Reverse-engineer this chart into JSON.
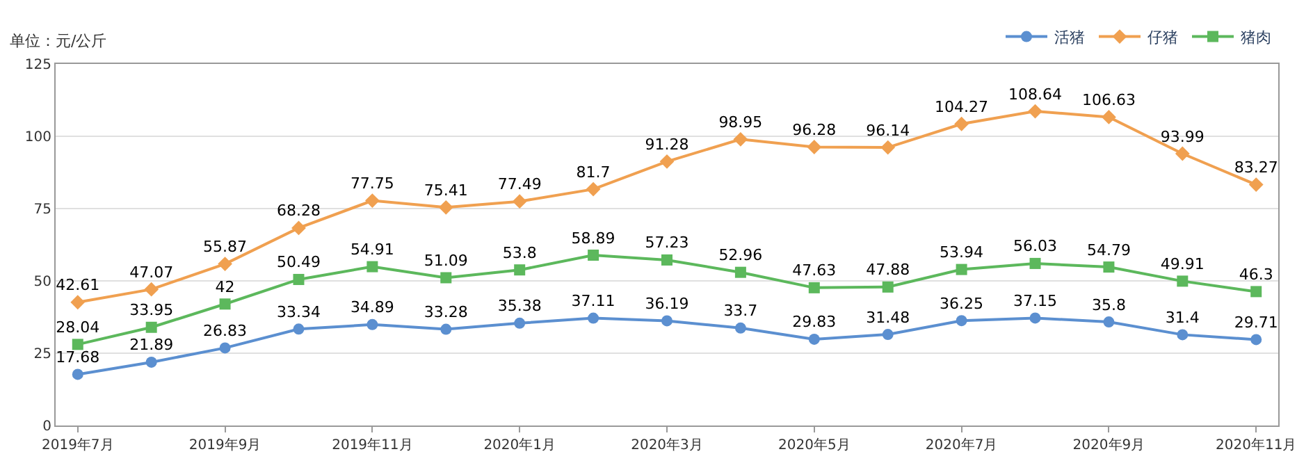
{
  "chart_data": {
    "type": "line",
    "ylabel": "单位：元/公斤",
    "categories": [
      "2019年7月",
      null,
      "2019年9月",
      null,
      "2019年11月",
      null,
      "2020年1月",
      null,
      "2020年3月",
      null,
      "2020年5月",
      null,
      "2020年7月",
      null,
      "2020年9月",
      null,
      "2020年11月"
    ],
    "series": [
      {
        "name": "活猪",
        "color": "#5b8fd0",
        "marker": "circle",
        "values": [
          17.68,
          21.89,
          26.83,
          33.34,
          34.89,
          33.28,
          35.38,
          37.11,
          36.19,
          33.7,
          29.83,
          31.48,
          36.25,
          37.15,
          35.8,
          31.4,
          29.71
        ]
      },
      {
        "name": "仔猪",
        "color": "#f0a050",
        "marker": "diamond",
        "values": [
          42.61,
          47.07,
          55.87,
          68.28,
          77.75,
          75.41,
          77.49,
          81.7,
          91.28,
          98.95,
          96.28,
          96.14,
          104.27,
          108.64,
          106.63,
          93.99,
          83.27
        ]
      },
      {
        "name": "猪肉",
        "color": "#5cb85c",
        "marker": "square",
        "values": [
          28.04,
          33.95,
          42,
          50.49,
          54.91,
          51.09,
          53.8,
          58.89,
          57.23,
          52.96,
          47.63,
          47.88,
          53.94,
          56.03,
          54.79,
          49.91,
          46.3
        ]
      }
    ],
    "ylim": [
      0,
      125
    ],
    "yticks": [
      0,
      25,
      50,
      75,
      100,
      125
    ],
    "grid": "y",
    "legend": "top right",
    "data_labels": true,
    "line_style": "solid"
  }
}
